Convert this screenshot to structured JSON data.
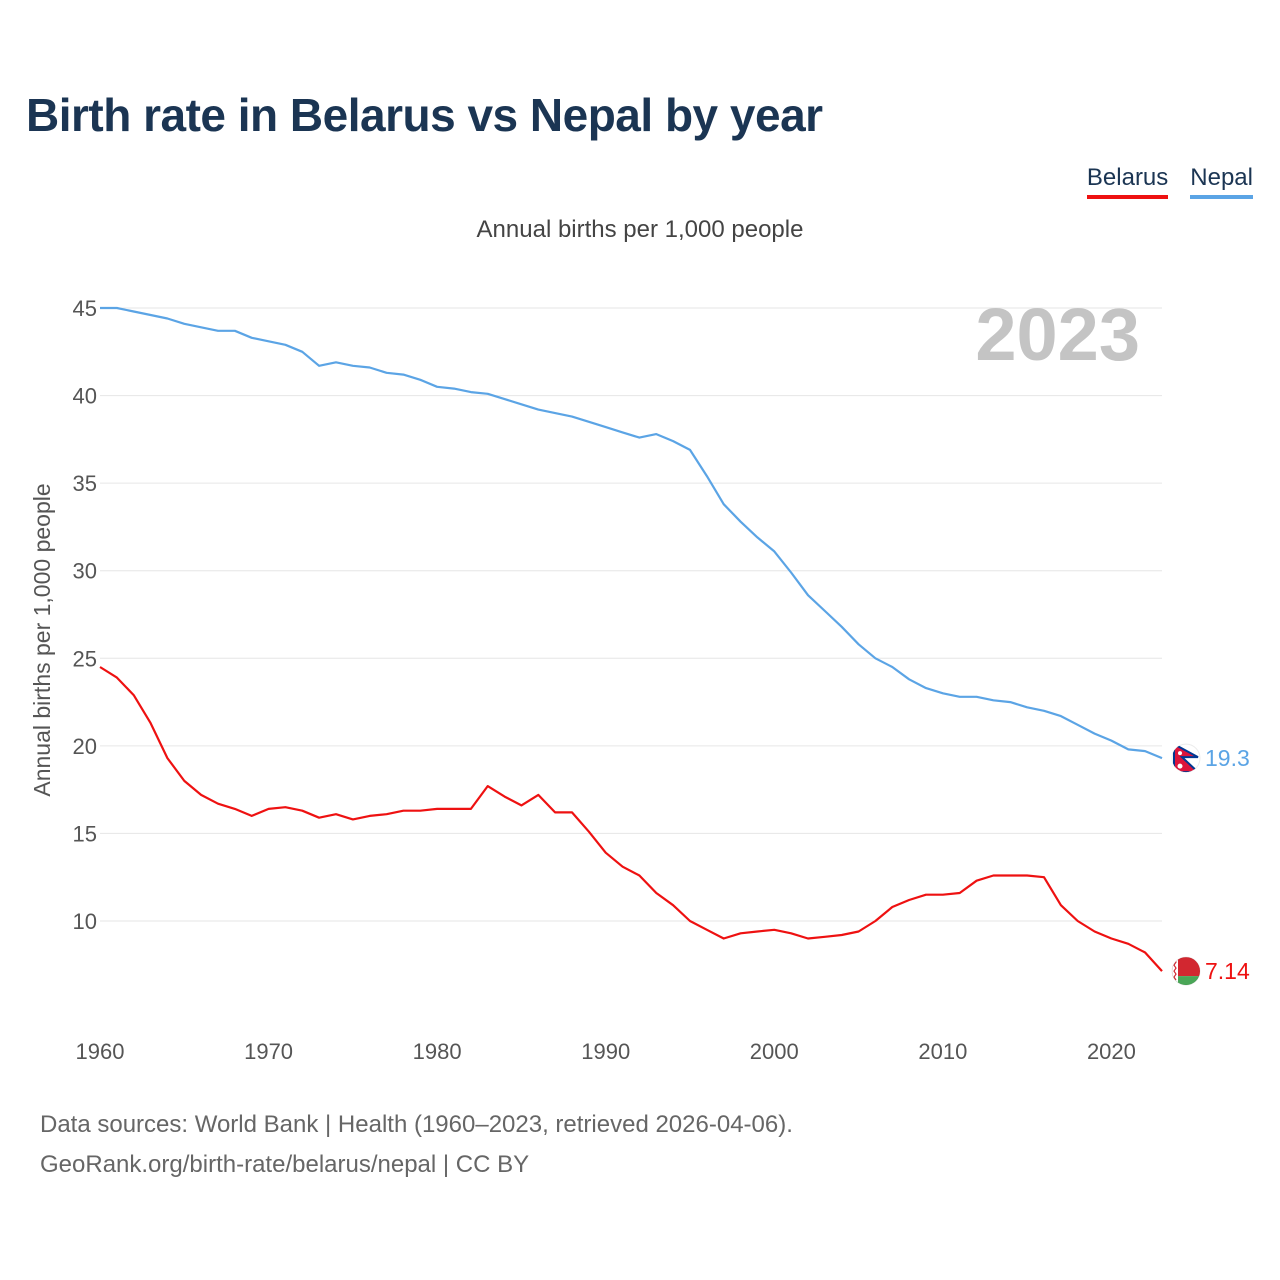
{
  "title": "Birth rate in Belarus vs Nepal by year",
  "legend": {
    "belarus": "Belarus",
    "nepal": "Nepal"
  },
  "subtitle": "Annual births per 1,000 people",
  "footer": {
    "line1": "Data sources: World Bank | Health (1960–2023, retrieved 2026-04-06).",
    "line2": "GeoRank.org/birth-rate/belarus/nepal | CC BY"
  },
  "colors": {
    "title": "#1b3553",
    "belarus": "#ee1111",
    "nepal": "#5ba4e5",
    "grid": "#e6e6e6",
    "year_watermark": "#c4c4c4"
  },
  "chart_data": {
    "type": "line",
    "title": "Birth rate in Belarus vs Nepal by year",
    "ylabel": "Annual births per 1,000 people",
    "xlabel": "",
    "year_watermark": "2023",
    "xlim": [
      1960,
      2023
    ],
    "ylim": [
      5,
      46
    ],
    "x_ticks": [
      "1960",
      "1970",
      "1980",
      "1990",
      "2000",
      "2010",
      "2020"
    ],
    "y_ticks": [
      "10",
      "15",
      "20",
      "25",
      "30",
      "35",
      "40",
      "45"
    ],
    "grid": true,
    "legend_position": "top-right",
    "x": [
      1960,
      1961,
      1962,
      1963,
      1964,
      1965,
      1966,
      1967,
      1968,
      1969,
      1970,
      1971,
      1972,
      1973,
      1974,
      1975,
      1976,
      1977,
      1978,
      1979,
      1980,
      1981,
      1982,
      1983,
      1984,
      1985,
      1986,
      1987,
      1988,
      1989,
      1990,
      1991,
      1992,
      1993,
      1994,
      1995,
      1996,
      1997,
      1998,
      1999,
      2000,
      2001,
      2002,
      2003,
      2004,
      2005,
      2006,
      2007,
      2008,
      2009,
      2010,
      2011,
      2012,
      2013,
      2014,
      2015,
      2016,
      2017,
      2018,
      2019,
      2020,
      2021,
      2022,
      2023
    ],
    "series": [
      {
        "name": "Belarus",
        "color": "#ee1111",
        "end_label": "7.14",
        "flag_icon": "belarus-flag-icon",
        "values": [
          24.5,
          23.9,
          22.9,
          21.3,
          19.3,
          18.0,
          17.2,
          16.7,
          16.4,
          16.0,
          16.4,
          16.5,
          16.3,
          15.9,
          16.1,
          15.8,
          16.0,
          16.1,
          16.3,
          16.3,
          16.4,
          16.4,
          16.4,
          17.7,
          17.1,
          16.6,
          17.2,
          16.2,
          16.2,
          15.1,
          13.9,
          13.1,
          12.6,
          11.6,
          10.9,
          10.0,
          9.5,
          9.0,
          9.3,
          9.4,
          9.5,
          9.3,
          9.0,
          9.1,
          9.2,
          9.4,
          10.0,
          10.8,
          11.2,
          11.5,
          11.5,
          11.6,
          12.3,
          12.6,
          12.6,
          12.6,
          12.5,
          10.9,
          10.0,
          9.4,
          9.0,
          8.7,
          8.2,
          7.14
        ]
      },
      {
        "name": "Nepal",
        "color": "#5ba4e5",
        "end_label": "19.3",
        "flag_icon": "nepal-flag-icon",
        "values": [
          45.0,
          45.0,
          44.8,
          44.6,
          44.4,
          44.1,
          43.9,
          43.7,
          43.7,
          43.3,
          43.1,
          42.9,
          42.5,
          41.7,
          41.9,
          41.7,
          41.6,
          41.3,
          41.2,
          40.9,
          40.5,
          40.4,
          40.2,
          40.1,
          39.8,
          39.5,
          39.2,
          39.0,
          38.8,
          38.5,
          38.2,
          37.9,
          37.6,
          37.8,
          37.4,
          36.9,
          35.4,
          33.8,
          32.8,
          31.9,
          31.1,
          29.9,
          28.6,
          27.7,
          26.8,
          25.8,
          25.0,
          24.5,
          23.8,
          23.3,
          23.0,
          22.8,
          22.8,
          22.6,
          22.5,
          22.2,
          22.0,
          21.7,
          21.2,
          20.7,
          20.3,
          19.8,
          19.7,
          19.3
        ]
      }
    ]
  }
}
